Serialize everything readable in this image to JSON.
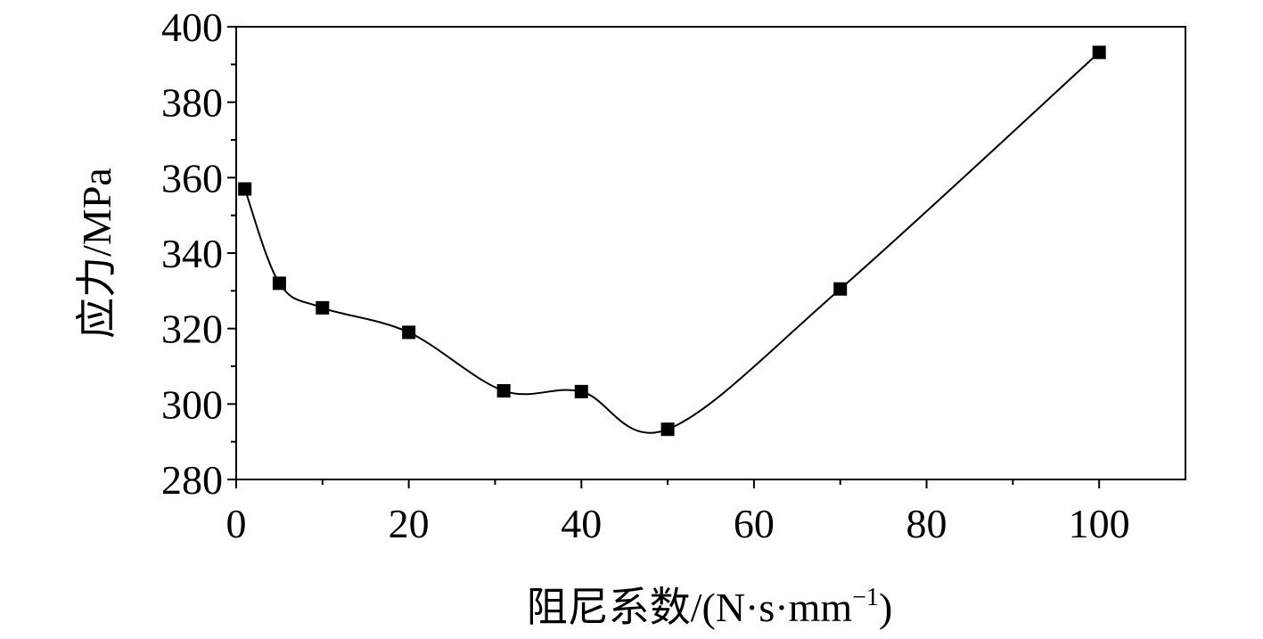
{
  "chart_data": {
    "type": "line",
    "title": "",
    "xlabel": "阻尼系数/(N·s·mm",
    "xlabel_sup": "−1",
    "xlabel_close": ")",
    "ylabel": "应力/MPa",
    "xlim": [
      0,
      110
    ],
    "ylim": [
      280,
      400
    ],
    "x_ticks": [
      0,
      20,
      40,
      60,
      80,
      100
    ],
    "y_ticks": [
      280,
      300,
      320,
      340,
      360,
      380,
      400
    ],
    "x_tick_labels": [
      "0",
      "20",
      "40",
      "60",
      "80",
      "100"
    ],
    "y_tick_labels": [
      "280",
      "300",
      "320",
      "340",
      "360",
      "380",
      "400"
    ],
    "grid": false,
    "legend": "none",
    "marker": "square",
    "smooth": true,
    "series": [
      {
        "x": [
          1,
          5,
          10,
          20,
          31,
          40,
          50,
          70,
          100
        ],
        "y": [
          357,
          332,
          325.5,
          319,
          303.5,
          303.3,
          293.3,
          330.5,
          393.2
        ]
      }
    ],
    "colors": {
      "line": "#000000",
      "marker": "#000000",
      "axis": "#000000"
    }
  }
}
